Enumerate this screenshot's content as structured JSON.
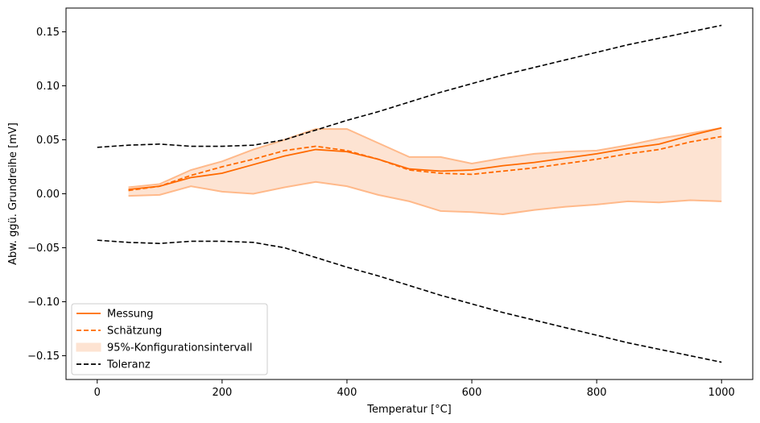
{
  "chart_data": {
    "type": "line",
    "xlabel": "Temperatur [°C]",
    "ylabel": "Abw. ggü. Grundreihe [mV]",
    "xlim": [
      -50,
      1050
    ],
    "ylim": [
      -0.172,
      0.172
    ],
    "xticks": [
      0,
      200,
      400,
      600,
      800,
      1000
    ],
    "yticks": [
      -0.15,
      -0.1,
      -0.05,
      0.0,
      0.05,
      0.1,
      0.15
    ],
    "xtick_labels": [
      "0",
      "200",
      "400",
      "600",
      "800",
      "1000"
    ],
    "ytick_labels": [
      "−0.15",
      "−0.10",
      "−0.05",
      "0.00",
      "0.05",
      "0.10",
      "0.15"
    ],
    "grid": false,
    "legend_placement": "lower-left",
    "colors": {
      "measurement": "#ff6a00",
      "estimate": "#ff6a00",
      "band_fill": "#fde3d2",
      "band_edge": "#ffb98a",
      "tolerance": "#000000"
    },
    "series": [
      {
        "name": "Messung",
        "style": "solid",
        "x": [
          50,
          100,
          150,
          200,
          250,
          300,
          350,
          400,
          450,
          500,
          550,
          600,
          650,
          700,
          750,
          800,
          850,
          900,
          950,
          1000
        ],
        "values": [
          0.004,
          0.007,
          0.015,
          0.019,
          0.027,
          0.035,
          0.041,
          0.039,
          0.032,
          0.023,
          0.021,
          0.022,
          0.026,
          0.029,
          0.033,
          0.037,
          0.042,
          0.046,
          0.054,
          0.061
        ]
      },
      {
        "name": "Schätzung",
        "style": "dashed",
        "x": [
          50,
          100,
          150,
          200,
          250,
          300,
          350,
          400,
          450,
          500,
          550,
          600,
          650,
          700,
          750,
          800,
          850,
          900,
          950,
          1000
        ],
        "values": [
          0.003,
          0.007,
          0.017,
          0.025,
          0.032,
          0.04,
          0.044,
          0.04,
          0.032,
          0.022,
          0.019,
          0.018,
          0.021,
          0.024,
          0.028,
          0.032,
          0.037,
          0.041,
          0.048,
          0.053
        ]
      },
      {
        "name": "95%-Konfigurationsintervall",
        "style": "band",
        "x": [
          50,
          100,
          150,
          200,
          250,
          300,
          350,
          400,
          450,
          500,
          550,
          600,
          650,
          700,
          750,
          800,
          850,
          900,
          950,
          1000
        ],
        "upper": [
          0.006,
          0.009,
          0.022,
          0.03,
          0.041,
          0.05,
          0.06,
          0.06,
          0.047,
          0.034,
          0.034,
          0.028,
          0.033,
          0.037,
          0.039,
          0.04,
          0.045,
          0.051,
          0.056,
          0.061
        ],
        "lower": [
          -0.002,
          -0.001,
          0.007,
          0.002,
          0.0,
          0.006,
          0.011,
          0.007,
          -0.001,
          -0.007,
          -0.016,
          -0.017,
          -0.019,
          -0.015,
          -0.012,
          -0.01,
          -0.007,
          -0.008,
          -0.006,
          -0.007
        ]
      },
      {
        "name": "Toleranz",
        "style": "dashed-black",
        "x": [
          0,
          50,
          100,
          150,
          200,
          250,
          300,
          350,
          400,
          450,
          500,
          550,
          600,
          650,
          700,
          750,
          800,
          850,
          900,
          950,
          1000
        ],
        "upper": [
          0.043,
          0.045,
          0.046,
          0.044,
          0.044,
          0.045,
          0.05,
          0.059,
          0.068,
          0.076,
          0.085,
          0.094,
          0.102,
          0.11,
          0.117,
          0.124,
          0.131,
          0.138,
          0.144,
          0.15,
          0.156
        ],
        "lower": [
          -0.043,
          -0.045,
          -0.046,
          -0.044,
          -0.044,
          -0.045,
          -0.05,
          -0.059,
          -0.068,
          -0.076,
          -0.085,
          -0.094,
          -0.102,
          -0.11,
          -0.117,
          -0.124,
          -0.131,
          -0.138,
          -0.144,
          -0.15,
          -0.156
        ]
      }
    ]
  },
  "legend": {
    "items": [
      {
        "label": "Messung",
        "icon": "solid-orange-line"
      },
      {
        "label": "Schätzung",
        "icon": "dashed-orange-line"
      },
      {
        "label": "95%-Konfigurationsintervall",
        "icon": "orange-fill-patch"
      },
      {
        "label": "Toleranz",
        "icon": "dashed-black-line"
      }
    ]
  }
}
